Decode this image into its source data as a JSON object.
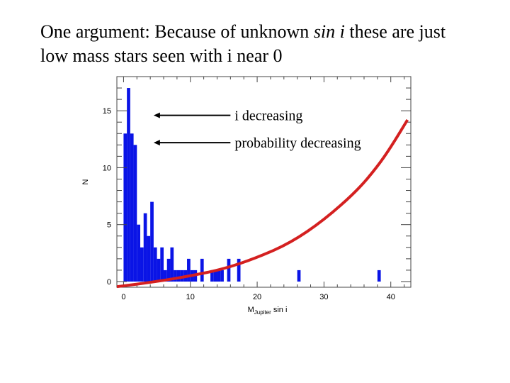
{
  "slide": {
    "title_prefix": "One argument: Because of unknown ",
    "title_italic": "sin i",
    "title_suffix": " these are just",
    "title_line2": "low mass stars seen with i near 0"
  },
  "chart_data": {
    "type": "bar",
    "xlabel_main": "M",
    "xlabel_sub": "Jupiter",
    "xlabel_tail": " sin i",
    "ylabel": "N",
    "xlim": [
      -1,
      43
    ],
    "ylim": [
      -0.5,
      18
    ],
    "x_ticks": [
      0,
      10,
      20,
      30,
      40
    ],
    "y_ticks": [
      0,
      5,
      10,
      15
    ],
    "bin_width": 0.5,
    "bins": [
      {
        "x": 0.0,
        "count": 13
      },
      {
        "x": 0.5,
        "count": 17
      },
      {
        "x": 1.0,
        "count": 13
      },
      {
        "x": 1.5,
        "count": 12
      },
      {
        "x": 2.0,
        "count": 5
      },
      {
        "x": 2.5,
        "count": 3
      },
      {
        "x": 3.0,
        "count": 6
      },
      {
        "x": 3.5,
        "count": 4
      },
      {
        "x": 4.0,
        "count": 7
      },
      {
        "x": 4.5,
        "count": 3
      },
      {
        "x": 5.0,
        "count": 2
      },
      {
        "x": 5.5,
        "count": 3
      },
      {
        "x": 6.0,
        "count": 1
      },
      {
        "x": 6.5,
        "count": 2
      },
      {
        "x": 7.0,
        "count": 3
      },
      {
        "x": 7.5,
        "count": 1
      },
      {
        "x": 8.0,
        "count": 1
      },
      {
        "x": 8.5,
        "count": 1
      },
      {
        "x": 9.0,
        "count": 1
      },
      {
        "x": 9.5,
        "count": 2
      },
      {
        "x": 10.0,
        "count": 1
      },
      {
        "x": 10.5,
        "count": 1
      },
      {
        "x": 11.5,
        "count": 2
      },
      {
        "x": 13.0,
        "count": 1
      },
      {
        "x": 13.5,
        "count": 1
      },
      {
        "x": 14.0,
        "count": 1
      },
      {
        "x": 14.5,
        "count": 1
      },
      {
        "x": 15.5,
        "count": 2
      },
      {
        "x": 17.0,
        "count": 2
      },
      {
        "x": 26.0,
        "count": 1
      },
      {
        "x": 38.0,
        "count": 1
      }
    ],
    "curve": {
      "description_color": "#d42020",
      "points": [
        [
          -1,
          -0.45
        ],
        [
          5,
          0
        ],
        [
          10,
          0.5
        ],
        [
          15,
          1.1
        ],
        [
          20,
          2.1
        ],
        [
          25,
          3.4
        ],
        [
          30,
          5.4
        ],
        [
          35,
          8.0
        ],
        [
          38,
          10.1
        ],
        [
          40,
          11.8
        ],
        [
          42.5,
          14.2
        ]
      ]
    },
    "annotations": [
      {
        "text": "i decreasing",
        "arrow_to_x": 4.5,
        "arrow_from_x": 16.0,
        "y": 14.6
      },
      {
        "text": "probability decreasing",
        "arrow_to_x": 4.5,
        "arrow_from_x": 16.0,
        "y": 12.2
      }
    ],
    "bar_color": "#0a14e6",
    "grid": false
  }
}
